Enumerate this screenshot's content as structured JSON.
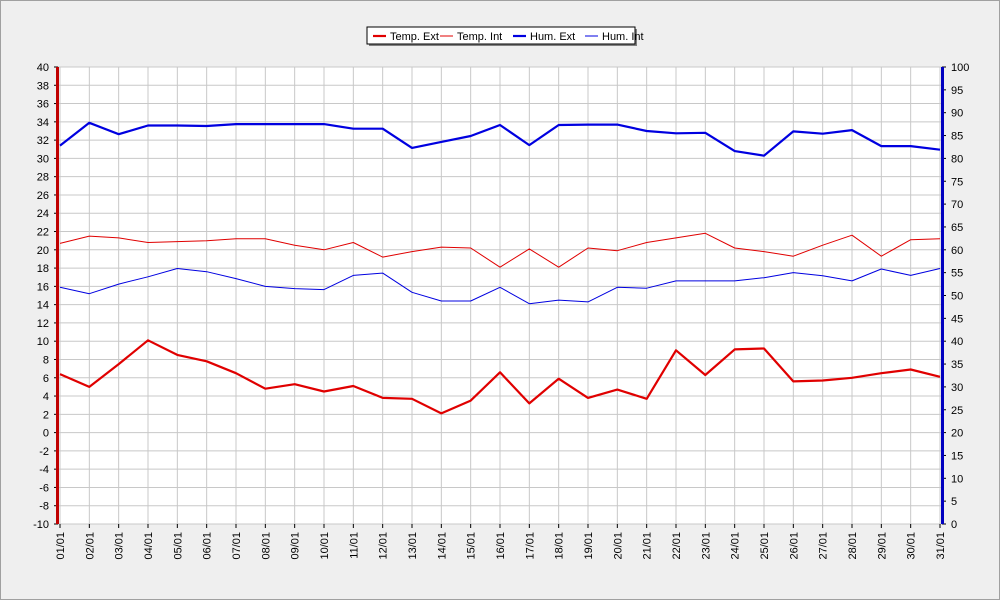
{
  "chart_data": {
    "type": "line",
    "categories": [
      "01/01",
      "02/01",
      "03/01",
      "04/01",
      "05/01",
      "06/01",
      "07/01",
      "08/01",
      "09/01",
      "10/01",
      "11/01",
      "12/01",
      "13/01",
      "14/01",
      "15/01",
      "16/01",
      "17/01",
      "18/01",
      "19/01",
      "20/01",
      "21/01",
      "22/01",
      "23/01",
      "24/01",
      "25/01",
      "26/01",
      "27/01",
      "28/01",
      "29/01",
      "30/01",
      "31/01"
    ],
    "series": [
      {
        "name": "Temp. Ext",
        "axis": "left",
        "color": "#e00000",
        "line_weight": "thick",
        "values": [
          6.4,
          5.0,
          7.5,
          10.1,
          8.5,
          7.8,
          6.5,
          4.8,
          5.3,
          4.5,
          5.1,
          3.8,
          3.7,
          2.1,
          3.5,
          6.6,
          3.2,
          5.9,
          3.8,
          4.7,
          3.7,
          9.0,
          6.3,
          9.1,
          9.2,
          5.6,
          5.7,
          6.0,
          6.5,
          6.9,
          6.1
        ]
      },
      {
        "name": "Temp. Int",
        "axis": "left",
        "color": "#e00000",
        "line_weight": "thin",
        "values": [
          20.7,
          21.5,
          21.3,
          20.8,
          20.9,
          21.0,
          21.2,
          21.2,
          20.5,
          20.0,
          20.8,
          19.2,
          19.8,
          20.3,
          20.2,
          18.1,
          20.1,
          18.1,
          20.2,
          19.9,
          20.8,
          21.3,
          21.8,
          20.2,
          19.8,
          19.3,
          20.5,
          21.6,
          19.3,
          21.1,
          21.2
        ]
      },
      {
        "name": "Hum. Ext",
        "axis": "right",
        "color": "#0000e0",
        "line_weight": "thick",
        "values": [
          82.8,
          87.8,
          85.3,
          87.2,
          87.2,
          87.1,
          87.5,
          87.5,
          87.5,
          87.5,
          86.5,
          86.5,
          82.3,
          83.6,
          84.9,
          87.3,
          82.9,
          87.3,
          87.4,
          87.4,
          86.0,
          85.5,
          85.6,
          81.6,
          80.6,
          85.9,
          85.4,
          86.2,
          82.7,
          82.7,
          81.9
        ]
      },
      {
        "name": "Hum. Int",
        "axis": "right",
        "color": "#0000e0",
        "line_weight": "thin",
        "values": [
          51.8,
          50.4,
          52.5,
          54.1,
          55.9,
          55.2,
          53.7,
          52.0,
          51.5,
          51.3,
          54.4,
          54.9,
          50.7,
          48.8,
          48.8,
          51.8,
          48.2,
          49.0,
          48.6,
          51.8,
          51.6,
          53.2,
          53.2,
          53.2,
          53.9,
          55.0,
          54.3,
          53.2,
          55.8,
          54.4,
          55.9
        ]
      }
    ],
    "ylim_left": [
      -10,
      40
    ],
    "ytick_step_left": 2,
    "ylim_right": [
      0,
      100
    ],
    "ytick_step_right": 5,
    "grid": true,
    "legend_position": "top-center",
    "left_axis_color": "#c00000",
    "right_axis_color": "#0000c0"
  }
}
